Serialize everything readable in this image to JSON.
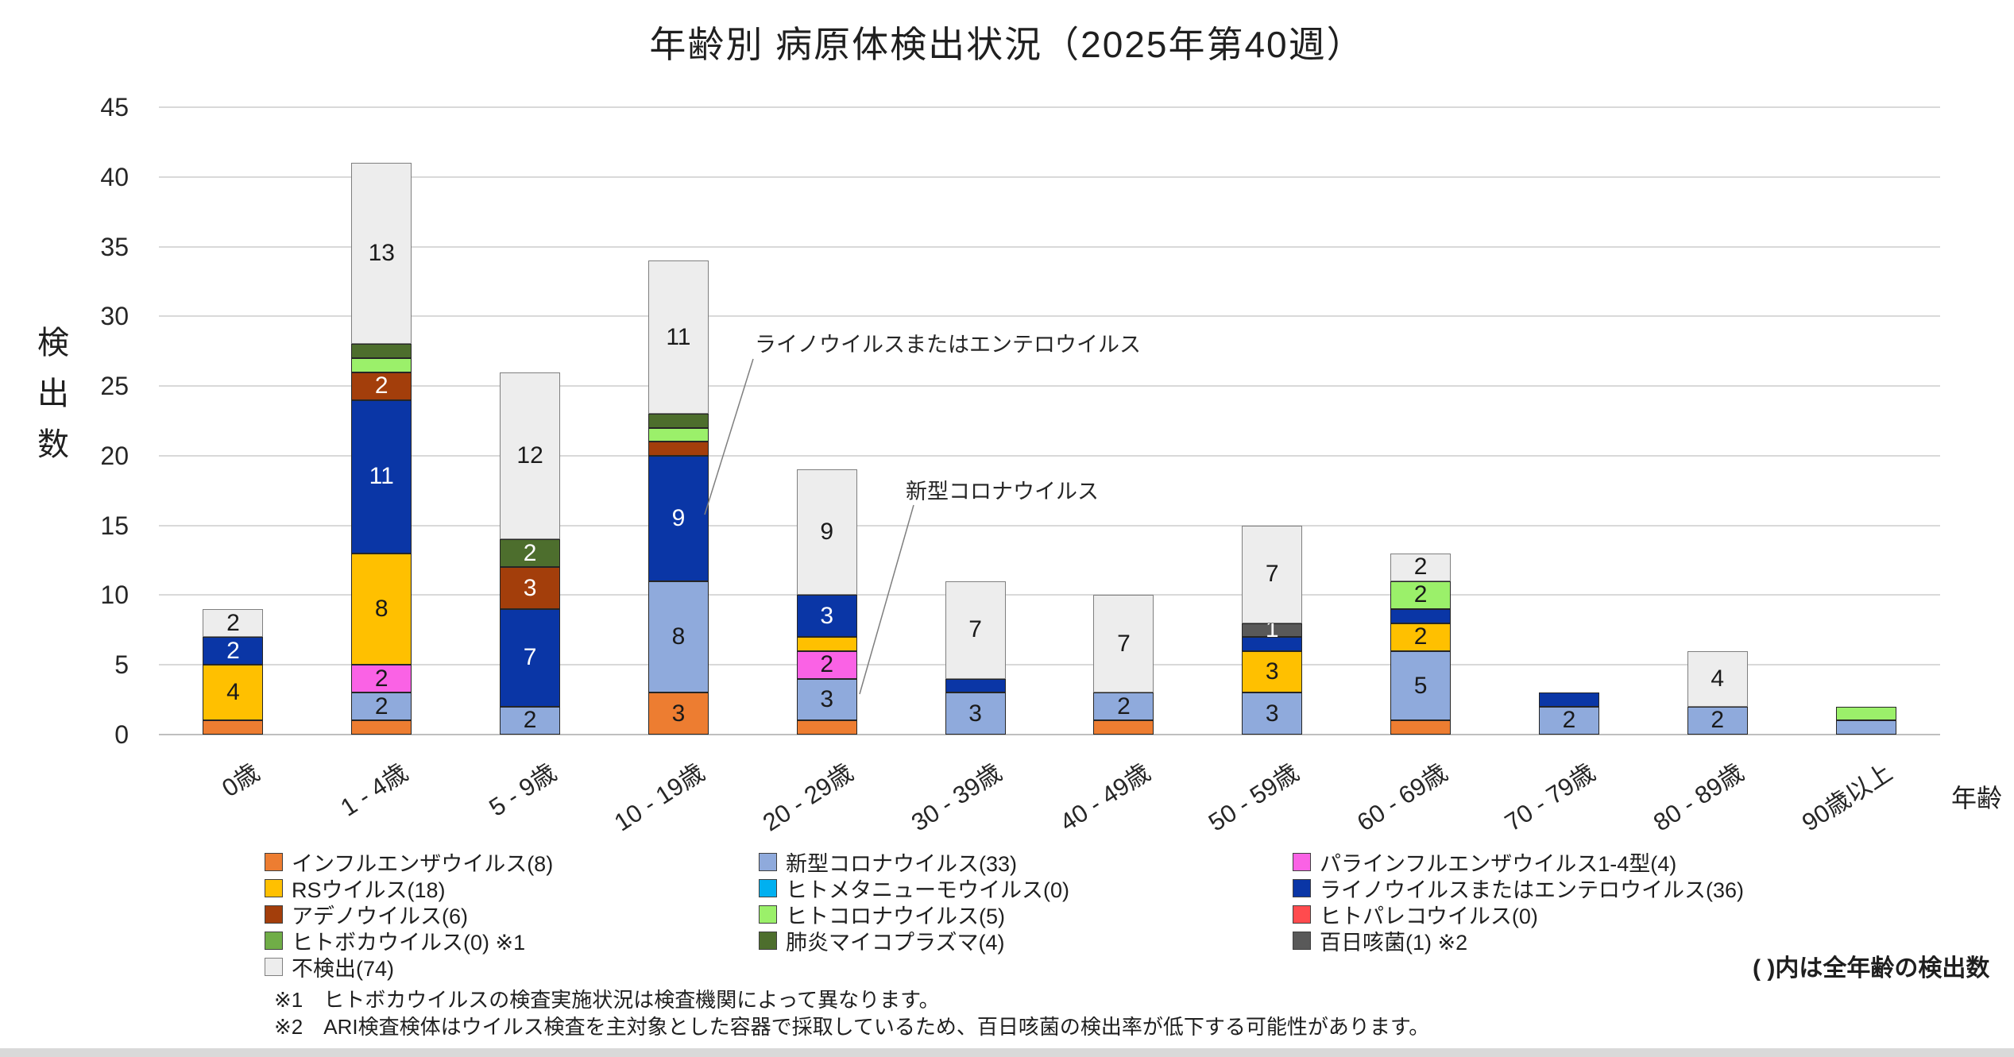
{
  "title": "年齢別 病原体検出状況（2025年第40週）",
  "axes": {
    "y_title": "検出数",
    "x_title": "年齢",
    "y_ticks": [
      0,
      5,
      10,
      15,
      20,
      25,
      30,
      35,
      40,
      45
    ]
  },
  "chart_data": {
    "type": "bar",
    "stacked": true,
    "title": "年齢別 病原体検出状況（2025年第40週）",
    "xlabel": "年齢",
    "ylabel": "検出数",
    "ylim": [
      0,
      45
    ],
    "grid": true,
    "legend_position": "bottom",
    "categories": [
      "0歳",
      "1 - 4歳",
      "5 - 9歳",
      "10 - 19歳",
      "20 - 29歳",
      "30 - 39歳",
      "40 - 49歳",
      "50 - 59歳",
      "60 - 69歳",
      "70 - 79歳",
      "80 - 89歳",
      "90歳以上"
    ],
    "category_totals": [
      9,
      41,
      26,
      34,
      19,
      11,
      10,
      15,
      13,
      3,
      6,
      2
    ],
    "series": [
      {
        "name": "インフルエンザウイルス",
        "legend_label": "インフルエンザウイルス(8)",
        "total": 8,
        "color": "#ED7D31",
        "border": "#262626",
        "text_color": "#1A1A1A",
        "label_min": 2,
        "values": [
          1,
          1,
          0,
          3,
          1,
          0,
          1,
          0,
          1,
          0,
          0,
          0
        ]
      },
      {
        "name": "新型コロナウイルス",
        "legend_label": "新型コロナウイルス(33)",
        "total": 33,
        "color": "#8FAADC",
        "border": "#262626",
        "text_color": "#1A1A1A",
        "label_min": 2,
        "values": [
          0,
          2,
          2,
          8,
          3,
          3,
          2,
          3,
          5,
          2,
          2,
          1
        ]
      },
      {
        "name": "パラインフルエンザウイルス1-4型",
        "legend_label": "パラインフルエンザウイルス1-4型(4)",
        "total": 4,
        "color": "#FA62E5",
        "border": "#262626",
        "text_color": "#1A1A1A",
        "label_min": 2,
        "values": [
          0,
          2,
          0,
          0,
          2,
          0,
          0,
          0,
          0,
          0,
          0,
          0
        ]
      },
      {
        "name": "RSウイルス",
        "legend_label": "RSウイルス(18)",
        "total": 18,
        "color": "#FFC000",
        "border": "#262626",
        "text_color": "#1A1A1A",
        "label_min": 2,
        "values": [
          4,
          8,
          0,
          0,
          1,
          0,
          0,
          3,
          2,
          0,
          0,
          0
        ]
      },
      {
        "name": "ヒトメタニューモウイルス",
        "legend_label": "ヒトメタニューモウイルス(0)",
        "total": 0,
        "color": "#00B0F0",
        "border": "#262626",
        "text_color": "#1A1A1A",
        "label_min": 2,
        "values": [
          0,
          0,
          0,
          0,
          0,
          0,
          0,
          0,
          0,
          0,
          0,
          0
        ]
      },
      {
        "name": "ライノウイルスまたはエンテロウイルス",
        "legend_label": "ライノウイルスまたはエンテロウイルス(36)",
        "total": 36,
        "color": "#0A36A6",
        "border": "#262626",
        "text_color": "#FFFFFF",
        "label_min": 2,
        "values": [
          2,
          11,
          7,
          9,
          3,
          1,
          0,
          1,
          1,
          1,
          0,
          0
        ]
      },
      {
        "name": "アデノウイルス",
        "legend_label": "アデノウイルス(6)",
        "total": 6,
        "color": "#A33E0B",
        "border": "#262626",
        "text_color": "#FFFFFF",
        "label_min": 2,
        "values": [
          0,
          2,
          3,
          1,
          0,
          0,
          0,
          0,
          0,
          0,
          0,
          0
        ]
      },
      {
        "name": "ヒトコロナウイルス",
        "legend_label": "ヒトコロナウイルス(5)",
        "total": 5,
        "color": "#9BF06A",
        "border": "#262626",
        "text_color": "#1A1A1A",
        "label_min": 2,
        "values": [
          0,
          1,
          0,
          1,
          0,
          0,
          0,
          0,
          2,
          0,
          0,
          1
        ]
      },
      {
        "name": "ヒトパレコウイルス",
        "legend_label": "ヒトパレコウイルス(0)",
        "total": 0,
        "color": "#FF4B4E",
        "border": "#262626",
        "text_color": "#1A1A1A",
        "label_min": 2,
        "values": [
          0,
          0,
          0,
          0,
          0,
          0,
          0,
          0,
          0,
          0,
          0,
          0
        ]
      },
      {
        "name": "ヒトボカウイルス",
        "legend_label": "ヒトボカウイルス(0) ※1",
        "total": 0,
        "color": "#70AD47",
        "border": "#262626",
        "text_color": "#1A1A1A",
        "label_min": 2,
        "values": [
          0,
          0,
          0,
          0,
          0,
          0,
          0,
          0,
          0,
          0,
          0,
          0
        ]
      },
      {
        "name": "肺炎マイコプラズマ",
        "legend_label": "肺炎マイコプラズマ(4)",
        "total": 4,
        "color": "#4D6E2D",
        "border": "#262626",
        "text_color": "#FFFFFF",
        "label_min": 2,
        "values": [
          0,
          1,
          2,
          1,
          0,
          0,
          0,
          0,
          0,
          0,
          0,
          0
        ]
      },
      {
        "name": "百日咳菌",
        "legend_label": "百日咳菌(1) ※2",
        "total": 1,
        "color": "#595959",
        "border": "#262626",
        "text_color": "#FFFFFF",
        "label_min": 1,
        "values": [
          0,
          0,
          0,
          0,
          0,
          0,
          0,
          1,
          0,
          0,
          0,
          0
        ]
      },
      {
        "name": "不検出",
        "legend_label": "不検出(74)",
        "total": 74,
        "color": "#EDEDED",
        "border": "#7F7F7F",
        "text_color": "#1A1A1A",
        "label_min": 2,
        "values": [
          2,
          13,
          12,
          11,
          9,
          7,
          7,
          7,
          2,
          0,
          4,
          0
        ]
      }
    ]
  },
  "legend": {
    "columns": [
      [
        0,
        3,
        6,
        9,
        12
      ],
      [
        1,
        4,
        7,
        10
      ],
      [
        2,
        5,
        8,
        11
      ]
    ]
  },
  "annotations": [
    {
      "text": "ライノウイルスまたはエンテロウイルス",
      "target_series": "ライノウイルスまたはエンテロウイルス",
      "target_category": "10 - 19歳"
    },
    {
      "text": "新型コロナウイルス",
      "target_series": "新型コロナウイルス",
      "target_category": "20 - 29歳"
    }
  ],
  "notes": {
    "unit_note": "( )内は全年齢の検出数"
  },
  "footnotes": [
    {
      "marker": "※1",
      "text": "ヒトボカウイルスの検査実施状況は検査機関によって異なります。"
    },
    {
      "marker": "※2",
      "text": "ARI検査検体はウイルス検査を主対象とした容器で採取しているため、百日咳菌の検出率が低下する可能性があります。"
    }
  ]
}
